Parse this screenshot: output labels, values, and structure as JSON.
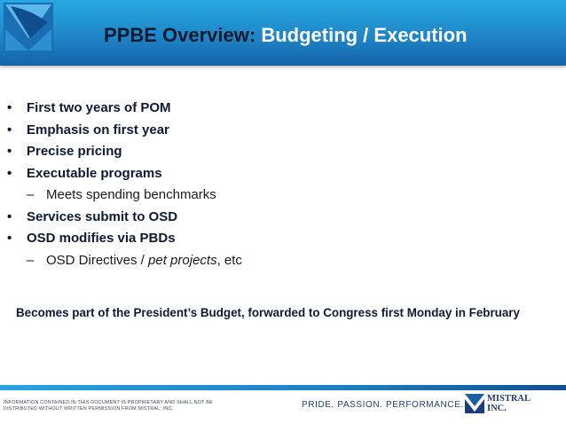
{
  "header": {
    "title_pp": "PP",
    "title_be_overview": "BE Overview:",
    "title_rest": " Budgeting / Execution"
  },
  "bullets": [
    {
      "text": "First two years of POM"
    },
    {
      "text": "Emphasis on first year"
    },
    {
      "text": "Precise pricing"
    },
    {
      "text": "Executable programs"
    },
    {
      "sub": "Meets spending benchmarks"
    },
    {
      "text": "Services submit to OSD"
    },
    {
      "text": "OSD modifies via PBDs"
    },
    {
      "sub_pre": "OSD Directives / ",
      "sub_em": "pet projects",
      "sub_post": ", etc"
    }
  ],
  "bullet_glyph": "•",
  "dash_glyph": "–",
  "note": "Becomes part of the President’s Budget, forwarded to Congress first Monday in February",
  "footer": {
    "disclaimer_line1": "Information contained in this document is proprietary and shall not be",
    "disclaimer_line2": "distributed without written permission from Mistral, Inc.",
    "slogan": "PRIDE. PASSION. PERFORMANCE.",
    "company_line1": "MISTRAL",
    "company_line2": "INC."
  },
  "colors": {
    "header_blue": "#1f86c8",
    "text_navy": "#0e1a35",
    "brand_navy": "#1d3d78"
  }
}
